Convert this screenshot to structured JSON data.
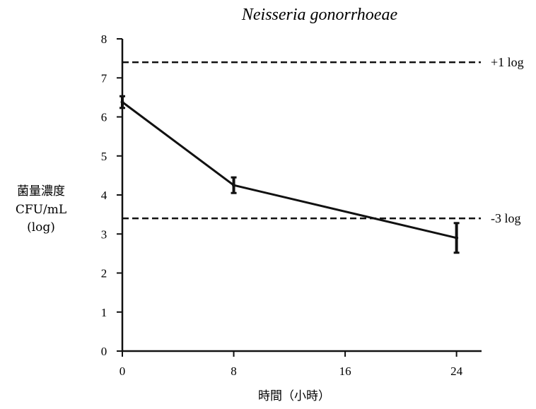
{
  "chart_data": {
    "type": "line",
    "title": "Neisseria gonorrhoeae",
    "xlabel": "時間（小時）",
    "ylabel_lines": [
      "菌量濃度",
      "CFU/mL",
      "(log)"
    ],
    "xlim": [
      0,
      26
    ],
    "ylim": [
      0,
      8
    ],
    "x_ticks": [
      0,
      8,
      16,
      24
    ],
    "y_ticks": [
      0,
      1,
      2,
      3,
      4,
      5,
      6,
      7,
      8
    ],
    "grid": false,
    "series": [
      {
        "x": [
          0,
          8,
          24
        ],
        "y": [
          6.38,
          4.25,
          2.9
        ],
        "error": [
          0.15,
          0.2,
          0.38
        ]
      }
    ],
    "reference_lines": [
      {
        "y": 7.4,
        "label": "+1 log",
        "style": "dashed"
      },
      {
        "y": 3.4,
        "label": "-3 log",
        "style": "dashed"
      }
    ],
    "line_color": "#111111"
  }
}
